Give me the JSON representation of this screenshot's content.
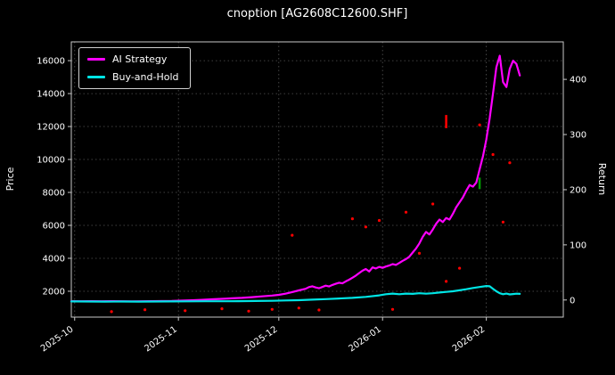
{
  "title": "cnoption [AG2608C12600.SHF]",
  "chart_data": {
    "type": "line",
    "title": "cnoption [AG2608C12600.SHF]",
    "ylabel_left": "Price",
    "ylabel_right": "Return",
    "grid": true,
    "legend_position": "upper-left",
    "background": "#000000",
    "x_range": [
      0,
      147
    ],
    "x_ticks": [
      {
        "label": "2025-10",
        "day": 1
      },
      {
        "label": "2025-11",
        "day": 32
      },
      {
        "label": "2025-12",
        "day": 62
      },
      {
        "label": "2026-01",
        "day": 93
      },
      {
        "label": "2026-02",
        "day": 124
      }
    ],
    "y_left": {
      "label": "Price",
      "ticks": [
        2000,
        4000,
        6000,
        8000,
        10000,
        12000,
        14000,
        16000
      ],
      "range": [
        430,
        17140
      ]
    },
    "y_right": {
      "label": "Return",
      "ticks": [
        0,
        100,
        200,
        300,
        400
      ],
      "range": [
        -31,
        468
      ]
    },
    "legend": [
      {
        "name": "AI Strategy",
        "color": "#ff00ff"
      },
      {
        "name": "Buy-and-Hold",
        "color": "#00e5e5"
      }
    ],
    "series": [
      {
        "name": "AI Strategy",
        "color": "#ff00ff",
        "axis": "left",
        "points": [
          [
            0,
            1400
          ],
          [
            3,
            1395
          ],
          [
            6,
            1400
          ],
          [
            9,
            1390
          ],
          [
            12,
            1400
          ],
          [
            15,
            1395
          ],
          [
            18,
            1385
          ],
          [
            21,
            1390
          ],
          [
            24,
            1400
          ],
          [
            27,
            1405
          ],
          [
            30,
            1410
          ],
          [
            33,
            1430
          ],
          [
            36,
            1450
          ],
          [
            39,
            1480
          ],
          [
            42,
            1510
          ],
          [
            45,
            1540
          ],
          [
            48,
            1570
          ],
          [
            51,
            1600
          ],
          [
            54,
            1640
          ],
          [
            57,
            1690
          ],
          [
            60,
            1740
          ],
          [
            62,
            1780
          ],
          [
            64,
            1850
          ],
          [
            66,
            1950
          ],
          [
            68,
            2050
          ],
          [
            70,
            2150
          ],
          [
            71,
            2250
          ],
          [
            72,
            2300
          ],
          [
            73,
            2230
          ],
          [
            74,
            2180
          ],
          [
            75,
            2260
          ],
          [
            76,
            2340
          ],
          [
            77,
            2290
          ],
          [
            78,
            2380
          ],
          [
            79,
            2450
          ],
          [
            80,
            2520
          ],
          [
            81,
            2480
          ],
          [
            82,
            2600
          ],
          [
            83,
            2700
          ],
          [
            84,
            2820
          ],
          [
            85,
            2950
          ],
          [
            86,
            3100
          ],
          [
            87,
            3250
          ],
          [
            88,
            3350
          ],
          [
            89,
            3200
          ],
          [
            90,
            3450
          ],
          [
            91,
            3380
          ],
          [
            92,
            3480
          ],
          [
            93,
            3420
          ],
          [
            94,
            3500
          ],
          [
            95,
            3560
          ],
          [
            96,
            3650
          ],
          [
            97,
            3600
          ],
          [
            98,
            3720
          ],
          [
            99,
            3850
          ],
          [
            100,
            3950
          ],
          [
            101,
            4100
          ],
          [
            102,
            4350
          ],
          [
            103,
            4600
          ],
          [
            104,
            4900
          ],
          [
            105,
            5300
          ],
          [
            106,
            5600
          ],
          [
            107,
            5450
          ],
          [
            108,
            5750
          ],
          [
            109,
            6100
          ],
          [
            110,
            6350
          ],
          [
            111,
            6200
          ],
          [
            112,
            6450
          ],
          [
            113,
            6350
          ],
          [
            114,
            6700
          ],
          [
            115,
            7100
          ],
          [
            116,
            7400
          ],
          [
            117,
            7700
          ],
          [
            118,
            8100
          ],
          [
            119,
            8450
          ],
          [
            120,
            8350
          ],
          [
            121,
            8600
          ],
          [
            122,
            9400
          ],
          [
            123,
            10200
          ],
          [
            124,
            11200
          ],
          [
            125,
            12500
          ],
          [
            126,
            14000
          ],
          [
            127,
            15600
          ],
          [
            128,
            16300
          ],
          [
            129,
            14700
          ],
          [
            130,
            14400
          ],
          [
            131,
            15500
          ],
          [
            132,
            16000
          ],
          [
            133,
            15800
          ],
          [
            134,
            15100
          ]
        ]
      },
      {
        "name": "Buy-and-Hold",
        "color": "#00e5e5",
        "axis": "left",
        "points": [
          [
            0,
            1380
          ],
          [
            5,
            1375
          ],
          [
            10,
            1370
          ],
          [
            15,
            1375
          ],
          [
            20,
            1370
          ],
          [
            25,
            1375
          ],
          [
            30,
            1380
          ],
          [
            35,
            1385
          ],
          [
            40,
            1390
          ],
          [
            45,
            1395
          ],
          [
            50,
            1400
          ],
          [
            55,
            1410
          ],
          [
            60,
            1420
          ],
          [
            64,
            1440
          ],
          [
            68,
            1460
          ],
          [
            72,
            1490
          ],
          [
            76,
            1520
          ],
          [
            80,
            1560
          ],
          [
            84,
            1600
          ],
          [
            88,
            1660
          ],
          [
            92,
            1750
          ],
          [
            94,
            1820
          ],
          [
            96,
            1860
          ],
          [
            98,
            1820
          ],
          [
            100,
            1860
          ],
          [
            102,
            1840
          ],
          [
            104,
            1880
          ],
          [
            106,
            1850
          ],
          [
            108,
            1880
          ],
          [
            110,
            1920
          ],
          [
            112,
            1960
          ],
          [
            114,
            2000
          ],
          [
            116,
            2060
          ],
          [
            118,
            2120
          ],
          [
            120,
            2200
          ],
          [
            122,
            2260
          ],
          [
            124,
            2320
          ],
          [
            125,
            2300
          ],
          [
            126,
            2150
          ],
          [
            127,
            2000
          ],
          [
            128,
            1880
          ],
          [
            129,
            1820
          ],
          [
            130,
            1860
          ],
          [
            131,
            1810
          ],
          [
            132,
            1830
          ],
          [
            133,
            1850
          ],
          [
            134,
            1840
          ]
        ]
      }
    ],
    "markers": {
      "dot_color": "#ff0000",
      "dots": [
        [
          12,
          760
        ],
        [
          22,
          880
        ],
        [
          34,
          820
        ],
        [
          45,
          940
        ],
        [
          53,
          790
        ],
        [
          60,
          900
        ],
        [
          66,
          5400
        ],
        [
          68,
          980
        ],
        [
          74,
          860
        ],
        [
          84,
          6400
        ],
        [
          88,
          5900
        ],
        [
          92,
          6300
        ],
        [
          96,
          900
        ],
        [
          100,
          6800
        ],
        [
          104,
          4300
        ],
        [
          108,
          7300
        ],
        [
          112,
          2600
        ],
        [
          116,
          3400
        ],
        [
          122,
          12100
        ],
        [
          126,
          10300
        ],
        [
          129,
          6200
        ],
        [
          131,
          9800
        ]
      ],
      "red_bar": {
        "day": 112,
        "price_from": 11900,
        "price_to": 12700,
        "color": "#ff0000"
      },
      "green_bar": {
        "day": 122,
        "price_from": 8200,
        "price_to": 8900,
        "color": "#00a000"
      }
    }
  }
}
